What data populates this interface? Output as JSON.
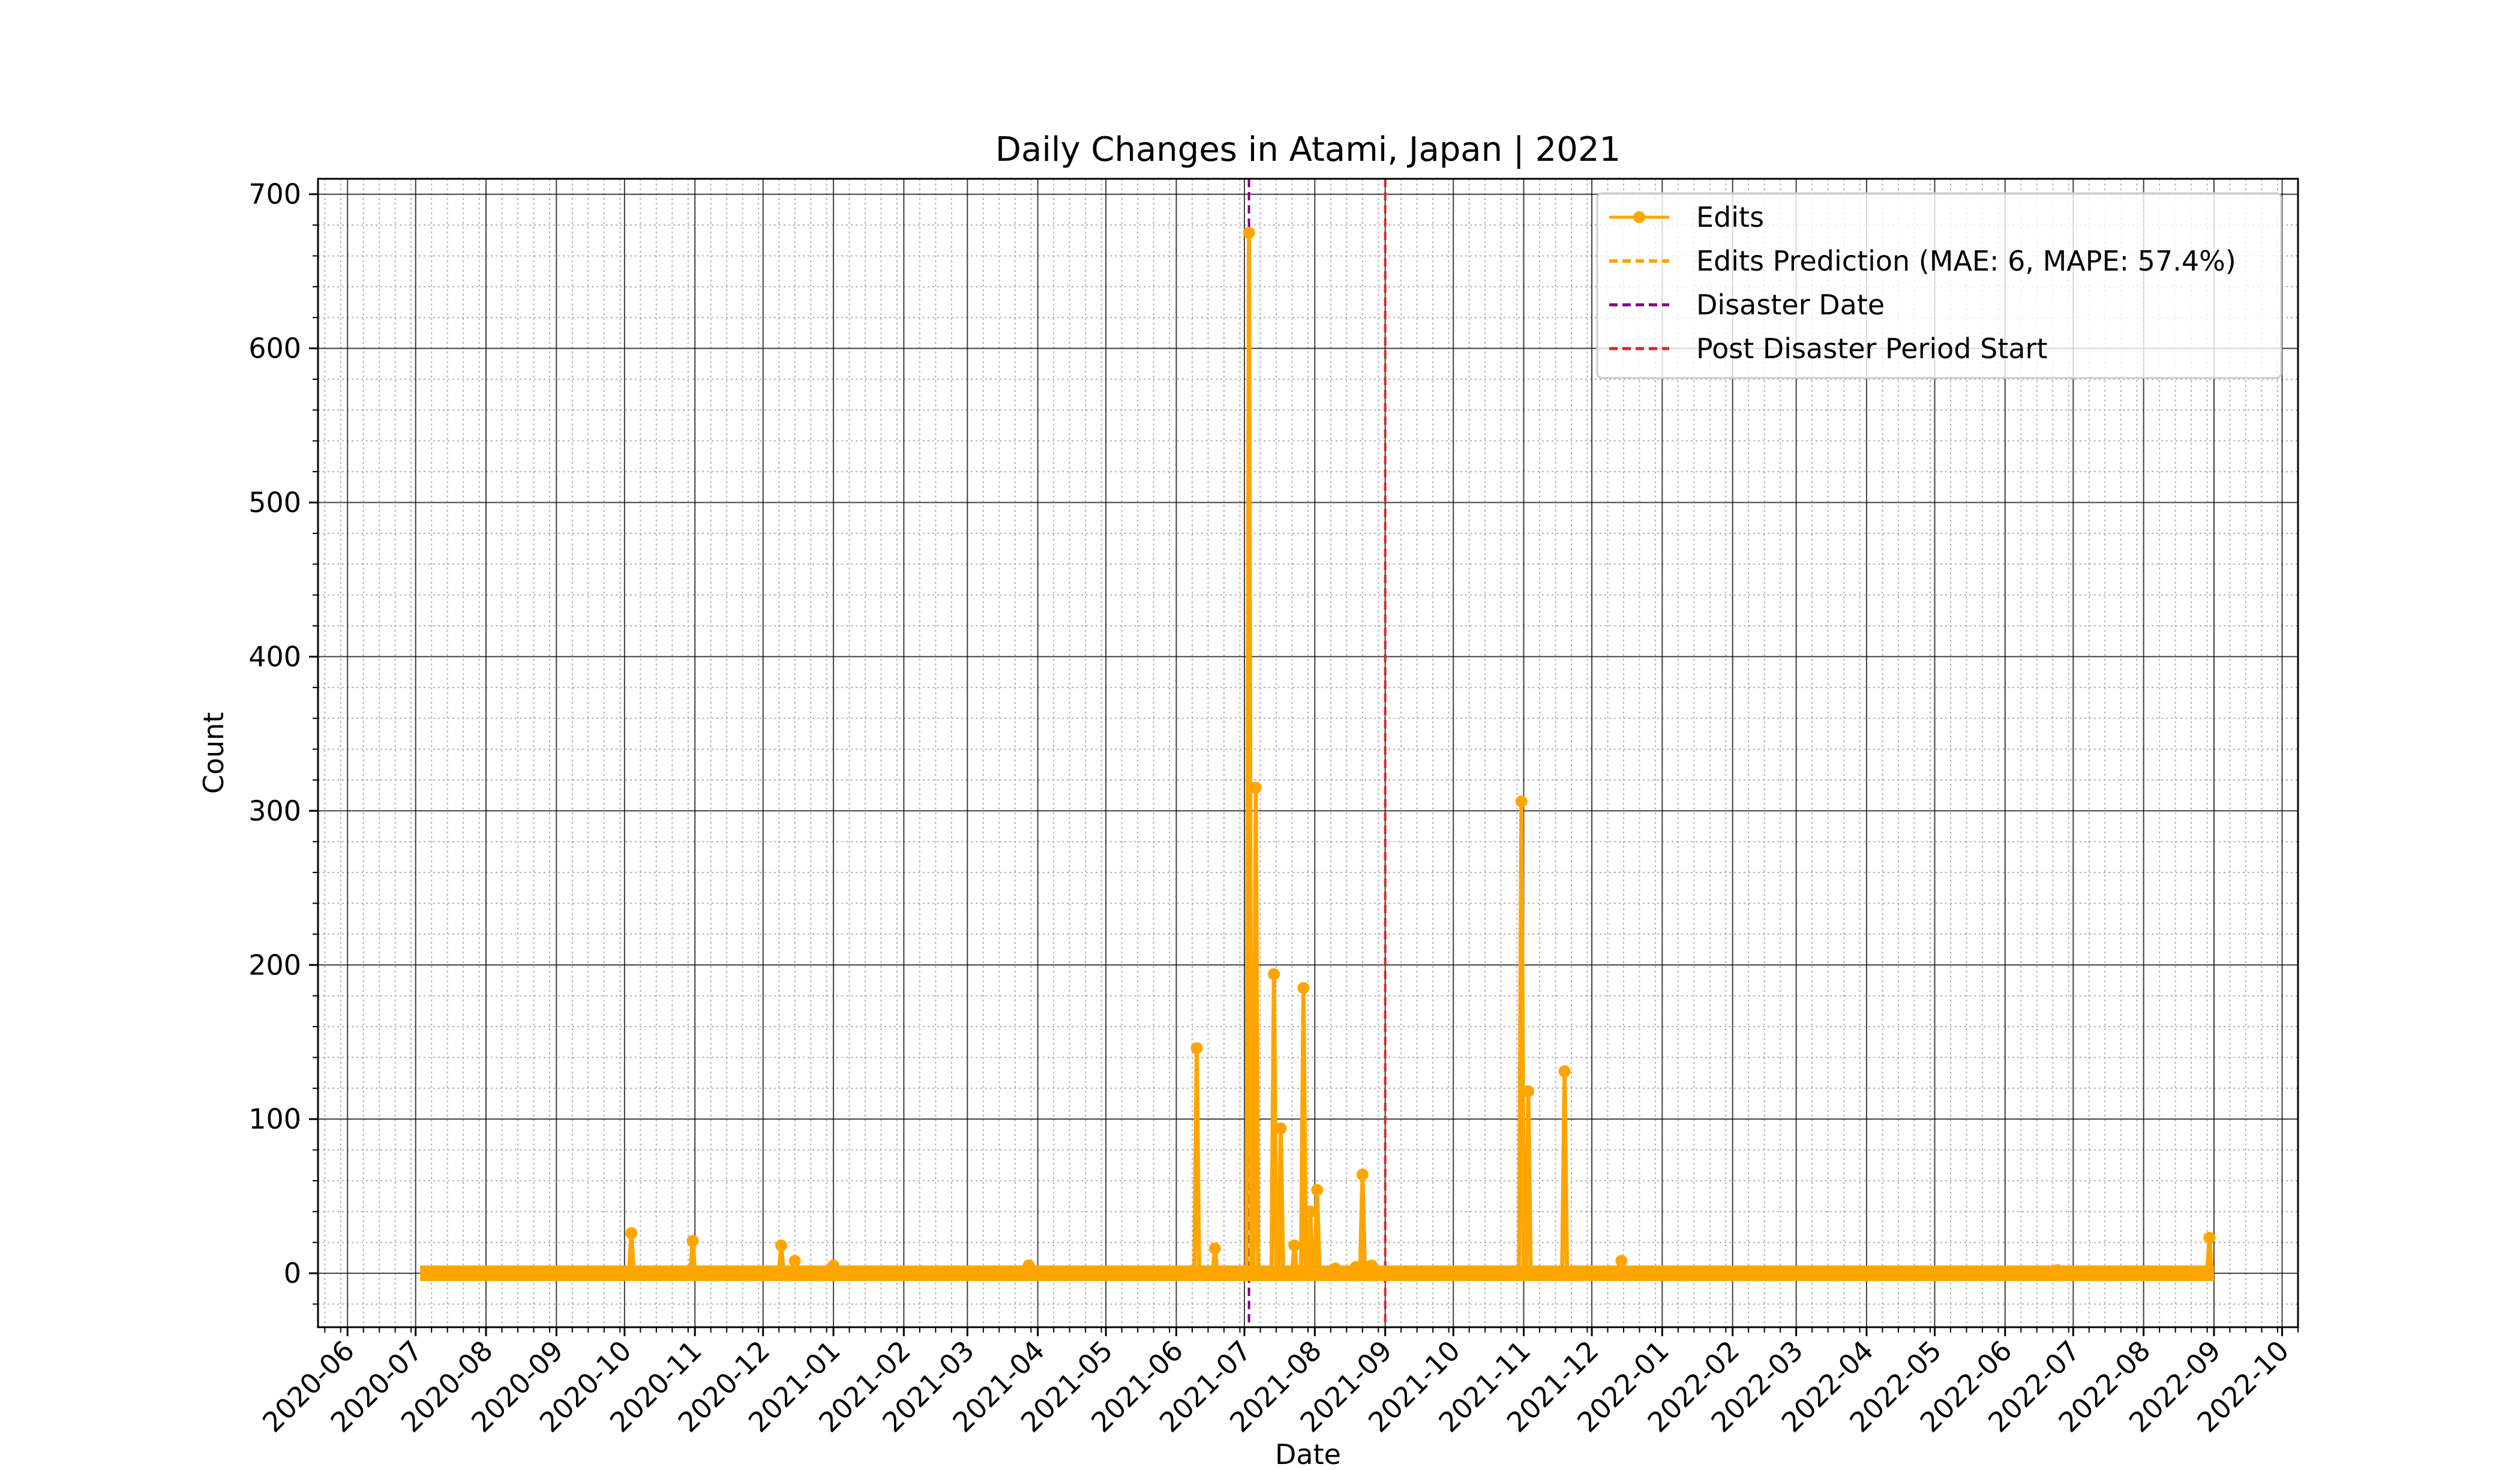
{
  "chart_data": {
    "type": "line",
    "title": "Daily Changes in Atami, Japan | 2021",
    "xlabel": "Date",
    "ylabel": "Count",
    "x_axis_type": "date",
    "xlim": [
      "2020-05-19",
      "2022-10-08"
    ],
    "ylim": [
      -35,
      710
    ],
    "x_ticks": [
      "2020-06",
      "2020-07",
      "2020-08",
      "2020-09",
      "2020-10",
      "2020-11",
      "2020-12",
      "2021-01",
      "2021-02",
      "2021-03",
      "2021-04",
      "2021-05",
      "2021-06",
      "2021-07",
      "2021-08",
      "2021-09",
      "2021-10",
      "2021-11",
      "2021-12",
      "2022-01",
      "2022-02",
      "2022-03",
      "2022-04",
      "2022-05",
      "2022-06",
      "2022-07",
      "2022-08",
      "2022-09",
      "2022-10"
    ],
    "y_ticks": [
      0,
      100,
      200,
      300,
      400,
      500,
      600,
      700
    ],
    "grid": true,
    "minor_grid": true,
    "legend_position": "top-right",
    "series": [
      {
        "name": "Edits",
        "style": "solid-line-with-dot-markers",
        "color": "#FFA500",
        "range": [
          "2020-07-03",
          "2022-09-01"
        ],
        "baseline": 0,
        "points": [
          {
            "x": "2020-10-04",
            "y": 26
          },
          {
            "x": "2020-10-31",
            "y": 21
          },
          {
            "x": "2020-12-09",
            "y": 18
          },
          {
            "x": "2020-12-15",
            "y": 8
          },
          {
            "x": "2021-01-01",
            "y": 5
          },
          {
            "x": "2021-03-28",
            "y": 5
          },
          {
            "x": "2021-05-02",
            "y": 1
          },
          {
            "x": "2021-06-10",
            "y": 146
          },
          {
            "x": "2021-06-18",
            "y": 16
          },
          {
            "x": "2021-07-03",
            "y": 675
          },
          {
            "x": "2021-07-06",
            "y": 315
          },
          {
            "x": "2021-07-14",
            "y": 194
          },
          {
            "x": "2021-07-17",
            "y": 94
          },
          {
            "x": "2021-07-23",
            "y": 18
          },
          {
            "x": "2021-07-27",
            "y": 185
          },
          {
            "x": "2021-07-30",
            "y": 40
          },
          {
            "x": "2021-08-02",
            "y": 54
          },
          {
            "x": "2021-08-10",
            "y": 3
          },
          {
            "x": "2021-08-19",
            "y": 4
          },
          {
            "x": "2021-08-22",
            "y": 64
          },
          {
            "x": "2021-08-26",
            "y": 5
          },
          {
            "x": "2021-10-17",
            "y": 1
          },
          {
            "x": "2021-10-31",
            "y": 306
          },
          {
            "x": "2021-11-03",
            "y": 118
          },
          {
            "x": "2021-11-19",
            "y": 131
          },
          {
            "x": "2021-12-14",
            "y": 8
          },
          {
            "x": "2022-03-27",
            "y": 1
          },
          {
            "x": "2022-06-24",
            "y": 2
          },
          {
            "x": "2022-08-30",
            "y": 23
          }
        ]
      },
      {
        "name": "Edits Prediction (MAE: 6, MAPE: 57.4%)",
        "style": "dashed",
        "color": "#FFA500"
      },
      {
        "name": "Disaster Date",
        "style": "vertical-dashed",
        "color": "#800080",
        "x": "2021-07-03"
      },
      {
        "name": "Post Disaster Period Start",
        "style": "vertical-dashed",
        "color": "#D62728",
        "x": "2021-09-01"
      }
    ]
  }
}
